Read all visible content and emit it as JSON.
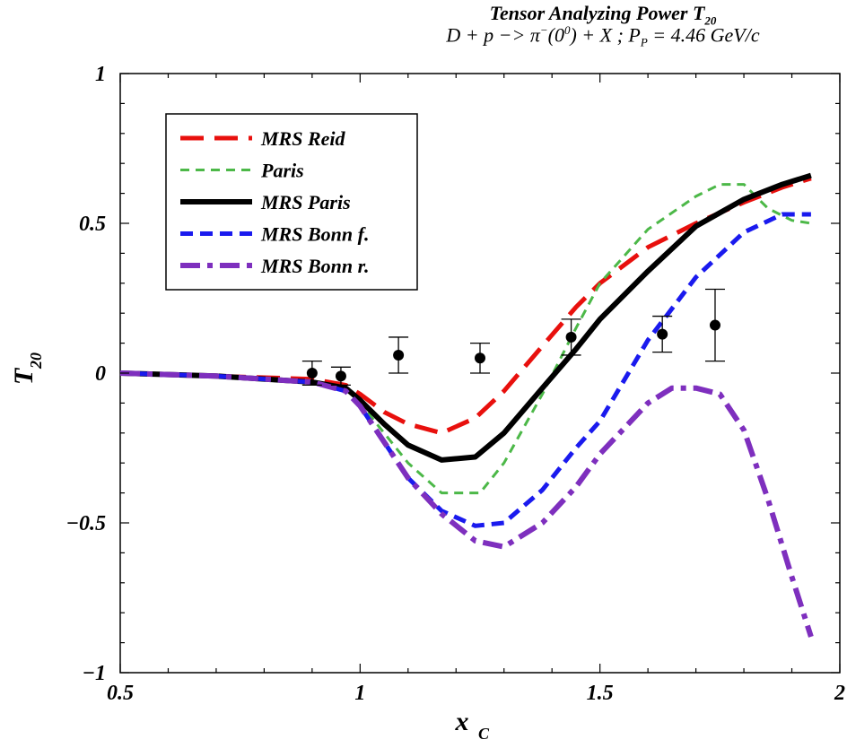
{
  "title": {
    "main": "Tensor Analyzing Power T",
    "main_sub": "20",
    "reaction_prefix": "D + p −> π",
    "reaction_sup1": "−",
    "reaction_mid": "(0",
    "reaction_sup2": "0",
    "reaction_suffix": ") + X ;  P",
    "reaction_sub": "P",
    "reaction_tail": " = 4.46 GeV/c"
  },
  "chart_data": {
    "type": "line",
    "xlabel": "x",
    "xlabel_sub": "C",
    "ylabel": "T",
    "ylabel_sub": "20",
    "xlim": [
      0.5,
      2.0
    ],
    "ylim": [
      -1.0,
      1.0
    ],
    "x_ticks": [
      "0.5",
      "1",
      "1.5",
      "2"
    ],
    "y_ticks": [
      "1",
      "0.5",
      "0",
      "−0.5",
      "−1"
    ],
    "legend_position": "top-left",
    "series": [
      {
        "name": "MRS Reid",
        "color": "#e8100d",
        "style": "long-dash",
        "x": [
          0.5,
          0.7,
          0.9,
          0.97,
          1.0,
          1.05,
          1.1,
          1.17,
          1.24,
          1.3,
          1.38,
          1.45,
          1.5,
          1.6,
          1.7,
          1.8,
          1.88,
          1.94
        ],
        "y": [
          0.0,
          -0.01,
          -0.02,
          -0.04,
          -0.07,
          -0.13,
          -0.17,
          -0.2,
          -0.15,
          -0.06,
          0.09,
          0.22,
          0.3,
          0.42,
          0.5,
          0.57,
          0.62,
          0.65
        ]
      },
      {
        "name": "Paris",
        "color": "#4cb848",
        "style": "short-dash",
        "x": [
          0.5,
          0.7,
          0.9,
          0.97,
          1.0,
          1.05,
          1.1,
          1.17,
          1.25,
          1.3,
          1.38,
          1.45,
          1.5,
          1.6,
          1.7,
          1.75,
          1.8,
          1.85,
          1.9,
          1.94
        ],
        "y": [
          0.0,
          -0.01,
          -0.03,
          -0.05,
          -0.1,
          -0.2,
          -0.3,
          -0.4,
          -0.4,
          -0.3,
          -0.07,
          0.15,
          0.3,
          0.48,
          0.59,
          0.63,
          0.63,
          0.55,
          0.51,
          0.5
        ]
      },
      {
        "name": "MRS Paris",
        "color": "#000000",
        "style": "solid",
        "x": [
          0.5,
          0.7,
          0.9,
          0.97,
          1.0,
          1.05,
          1.1,
          1.17,
          1.24,
          1.3,
          1.38,
          1.45,
          1.5,
          1.6,
          1.7,
          1.8,
          1.88,
          1.94
        ],
        "y": [
          0.0,
          -0.01,
          -0.03,
          -0.05,
          -0.09,
          -0.17,
          -0.24,
          -0.29,
          -0.28,
          -0.2,
          -0.05,
          0.08,
          0.18,
          0.34,
          0.49,
          0.58,
          0.63,
          0.66
        ]
      },
      {
        "name": "MRS Bonn f.",
        "color": "#1a1aee",
        "style": "dash",
        "x": [
          0.5,
          0.7,
          0.9,
          0.97,
          1.0,
          1.05,
          1.1,
          1.17,
          1.24,
          1.3,
          1.38,
          1.45,
          1.5,
          1.6,
          1.7,
          1.8,
          1.88,
          1.94
        ],
        "y": [
          0.0,
          -0.01,
          -0.03,
          -0.06,
          -0.11,
          -0.23,
          -0.35,
          -0.46,
          -0.51,
          -0.5,
          -0.39,
          -0.25,
          -0.16,
          0.11,
          0.32,
          0.47,
          0.53,
          0.53
        ]
      },
      {
        "name": "MRS Bonn r.",
        "color": "#7e2fbe",
        "style": "dash-dot",
        "x": [
          0.5,
          0.7,
          0.9,
          0.97,
          1.0,
          1.05,
          1.1,
          1.17,
          1.24,
          1.3,
          1.38,
          1.45,
          1.5,
          1.6,
          1.65,
          1.7,
          1.75,
          1.8,
          1.85,
          1.9,
          1.94
        ],
        "y": [
          0.0,
          -0.01,
          -0.03,
          -0.06,
          -0.11,
          -0.23,
          -0.35,
          -0.47,
          -0.56,
          -0.58,
          -0.5,
          -0.38,
          -0.27,
          -0.1,
          -0.05,
          -0.05,
          -0.07,
          -0.19,
          -0.42,
          -0.68,
          -0.88
        ]
      }
    ],
    "data_points": {
      "x": [
        0.9,
        0.96,
        1.08,
        1.25,
        1.44,
        1.63,
        1.74
      ],
      "y": [
        0.0,
        -0.01,
        0.06,
        0.05,
        0.12,
        0.13,
        0.16
      ],
      "err": [
        0.04,
        0.03,
        0.06,
        0.05,
        0.06,
        0.06,
        0.12
      ]
    }
  }
}
